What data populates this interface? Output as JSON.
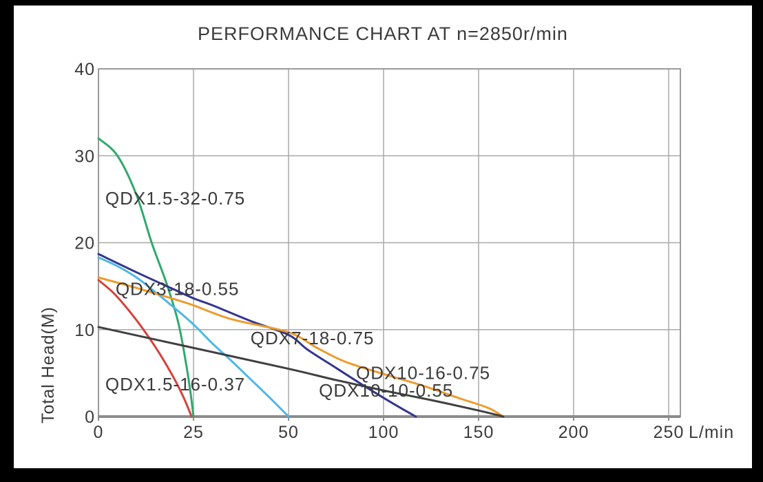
{
  "colors": {
    "frame": "#000000",
    "panel": "#ffffff",
    "grid": "#a8a8a8",
    "axis": "#8c8c8c",
    "box": "#9a9a9a",
    "text": "#3b3b3b"
  },
  "chart_data": {
    "type": "line",
    "title": "PERFORMANCE CHART AT n=2850r/min",
    "ylabel": "Total Head(M)",
    "xlabel_unit": "L/min",
    "ylim": [
      0,
      40
    ],
    "y_ticks": [
      0,
      10,
      20,
      30,
      40
    ],
    "x_ticks": [
      0,
      25,
      50,
      100,
      150,
      200,
      250
    ],
    "x_axis_note": "non-linear scale: tick marks 0,25,50,100,150,200,250 are equally spaced",
    "grid": true,
    "legend_position": "labels-on-curves",
    "series": [
      {
        "name": "QDX1.5-32-0.75",
        "color": "#2fa86c",
        "label_pos": [
          1.8,
          24.4
        ],
        "points": [
          [
            0,
            32
          ],
          [
            5,
            30
          ],
          [
            10,
            25.5
          ],
          [
            14,
            20
          ],
          [
            18,
            15.2
          ],
          [
            21,
            10.8
          ],
          [
            23,
            6.2
          ],
          [
            24.2,
            2.8
          ],
          [
            25,
            0
          ]
        ]
      },
      {
        "name": "QDX1.5-16-0.37",
        "color": "#d6413b",
        "label_pos": [
          1.8,
          3.0
        ],
        "points": [
          [
            0,
            15.7
          ],
          [
            4,
            14.2
          ],
          [
            8,
            12.2
          ],
          [
            12,
            9.9
          ],
          [
            16,
            7.3
          ],
          [
            20,
            4.3
          ],
          [
            22.5,
            2.1
          ],
          [
            24.5,
            0
          ]
        ]
      },
      {
        "name": "QDX3-18-0.55",
        "color": "#4cb7e6",
        "label_pos": [
          4.5,
          14.0
        ],
        "points": [
          [
            0,
            18.3
          ],
          [
            5,
            17.3
          ],
          [
            10,
            16.0
          ],
          [
            15,
            14.3
          ],
          [
            20,
            12.5
          ],
          [
            25,
            10.6
          ],
          [
            30,
            8.4
          ],
          [
            35,
            6.4
          ],
          [
            40,
            4.3
          ],
          [
            45,
            2.2
          ],
          [
            50,
            0
          ]
        ]
      },
      {
        "name": "QDX7-18-0.75",
        "color": "#31358f",
        "label_pos": [
          40,
          8.3
        ],
        "points": [
          [
            0,
            18.7
          ],
          [
            10,
            16.6
          ],
          [
            20,
            14.6
          ],
          [
            25,
            13.6
          ],
          [
            30,
            12.8
          ],
          [
            40,
            11.0
          ],
          [
            50,
            9.4
          ],
          [
            60,
            7.7
          ],
          [
            75,
            5.6
          ],
          [
            90,
            3.5
          ],
          [
            105,
            1.5
          ],
          [
            117,
            0
          ]
        ]
      },
      {
        "name": "QDX10-16-0.75",
        "color": "#f09a2b",
        "label_pos": [
          85.5,
          4.3
        ],
        "points": [
          [
            0,
            16.0
          ],
          [
            10,
            14.8
          ],
          [
            20,
            13.5
          ],
          [
            25,
            12.8
          ],
          [
            35,
            11.2
          ],
          [
            50,
            9.7
          ],
          [
            65,
            7.9
          ],
          [
            80,
            6.3
          ],
          [
            100,
            4.9
          ],
          [
            120,
            3.6
          ],
          [
            140,
            2.1
          ],
          [
            155,
            1.0
          ],
          [
            163,
            0
          ]
        ]
      },
      {
        "name": "QDX10-10-0.55",
        "color": "#404040",
        "label_pos": [
          66,
          2.3
        ],
        "points": [
          [
            0,
            10.3
          ],
          [
            25,
            7.9
          ],
          [
            50,
            5.5
          ],
          [
            75,
            4.2
          ],
          [
            100,
            3.0
          ],
          [
            125,
            1.9
          ],
          [
            150,
            0.7
          ],
          [
            163,
            0
          ]
        ]
      }
    ]
  }
}
